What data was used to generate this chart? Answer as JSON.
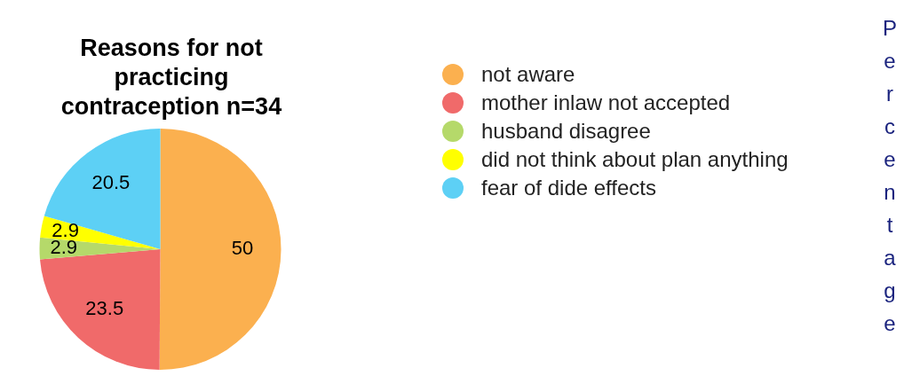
{
  "chart_data": {
    "type": "pie",
    "title": "Reasons for not practicing contraception n=34",
    "categories": [
      "not aware",
      "mother inlaw not accepted",
      "husband disagree",
      "did not think about plan anything",
      "fear of dide effects"
    ],
    "values": [
      50,
      23.5,
      2.9,
      2.9,
      20.5
    ],
    "colors": [
      "#fbb04f",
      "#f06a6a",
      "#b5d96a",
      "#ffff00",
      "#5dd0f5"
    ],
    "data_labels": true,
    "legend": "right",
    "ylabel": "Percentage"
  }
}
